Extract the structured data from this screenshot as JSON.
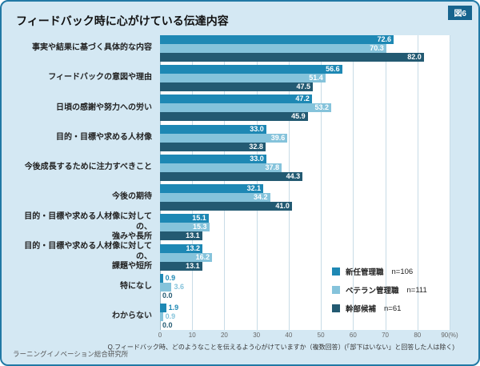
{
  "figure_label": "図6",
  "title": "フィードバック時に心がけている伝達内容",
  "footnote": "Q.フィードバック時、どのようなことを伝えるよう心がけていますか（複数回答）(「部下はいない」と回答した人は除く)",
  "source": "ラーニングイノベーション総合研究所",
  "colors": {
    "background": "#d4e8f3",
    "border": "#2179a5",
    "badge": "#17648e",
    "grid": "#c8dce7",
    "plot_background": "#ffffff"
  },
  "chart_data": {
    "type": "bar",
    "orientation": "horizontal",
    "title": "フィードバック時に心がけている伝達内容",
    "xlim": [
      0,
      90
    ],
    "x_ticks": [
      "0",
      "10",
      "20",
      "30",
      "40",
      "50",
      "60",
      "70",
      "80",
      "90(%)"
    ],
    "grid": true,
    "legend_position": "bottom-right-inside",
    "categories": [
      "事実や結果に基づく具体的な内容",
      "フィードバックの意図や理由",
      "日頃の感謝や努力への労い",
      "目的・目標や求める人材像",
      "今後成長するために注力すべきこと",
      "今後の期待",
      "目的・目標や求める人材像に対しての、\n強みや長所",
      "目的・目標や求める人材像に対しての、\n課題や短所",
      "特になし",
      "わからない"
    ],
    "series": [
      {
        "name": "新任管理職",
        "n_label": "n=106",
        "color": "#1e88b4",
        "values": [
          72.6,
          56.6,
          47.2,
          33.0,
          33.0,
          32.1,
          15.1,
          13.2,
          0.9,
          1.9
        ]
      },
      {
        "name": "ベテラン管理職",
        "n_label": "n=111",
        "color": "#85c3db",
        "values": [
          70.3,
          51.4,
          53.2,
          39.6,
          37.8,
          34.2,
          15.3,
          16.2,
          3.6,
          0.9
        ]
      },
      {
        "name": "幹部候補",
        "n_label": "n=61",
        "color": "#235a72",
        "values": [
          82.0,
          47.5,
          45.9,
          32.8,
          44.3,
          41.0,
          13.1,
          13.1,
          0.0,
          0.0
        ]
      }
    ]
  }
}
